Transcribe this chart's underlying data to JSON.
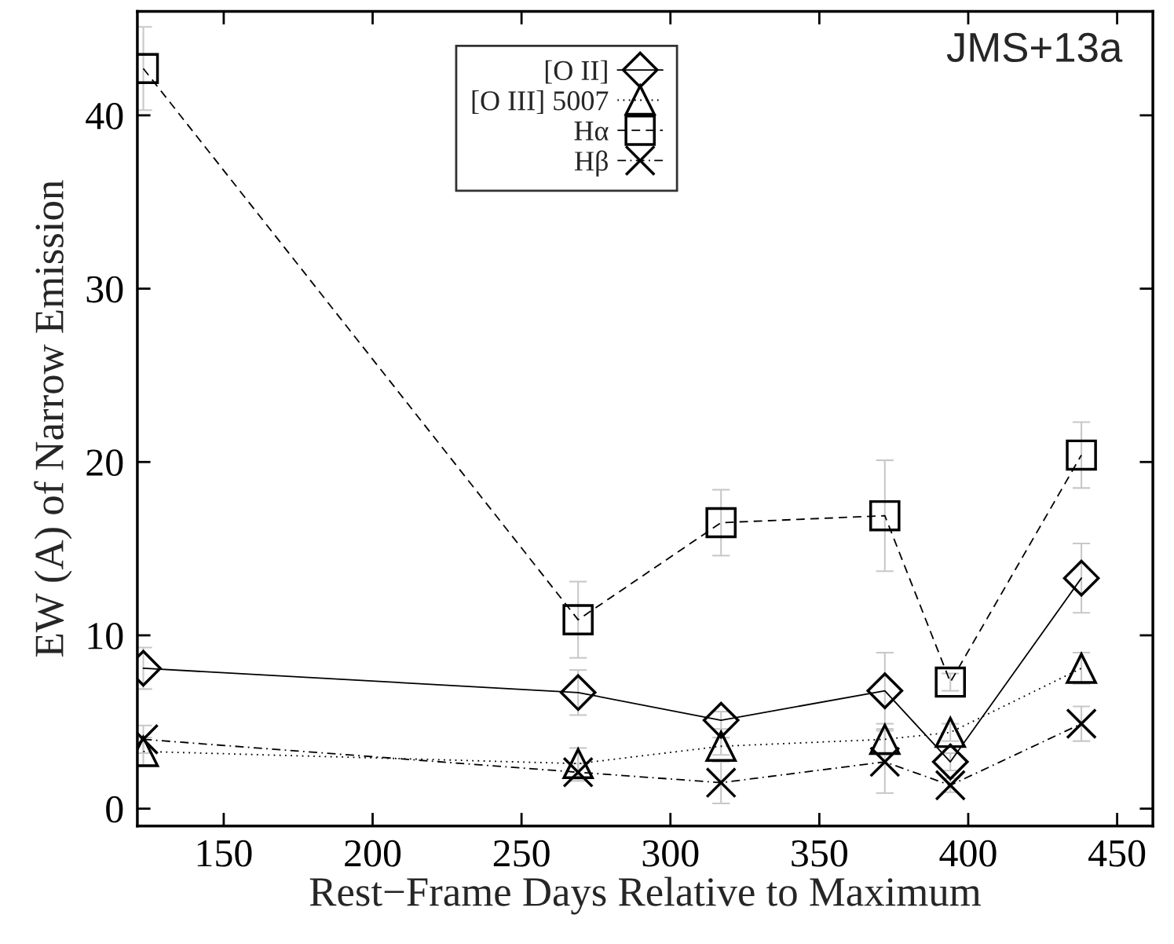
{
  "chart_data": {
    "type": "line",
    "xlabel": "Rest−Frame Days Relative to Maximum",
    "ylabel": "EW (A) of Narrow Emission",
    "x": [
      123,
      269,
      317,
      372,
      394,
      438
    ],
    "series": [
      {
        "name": "[O II]",
        "color": "#000000",
        "marker": "diamond",
        "line_style": "solid",
        "values": [
          8.1,
          6.7,
          5.1,
          6.8,
          2.7,
          13.3
        ],
        "errors": [
          1.2,
          1.3,
          0.5,
          2.2,
          0.5,
          2.0
        ]
      },
      {
        "name": "[O III] 5007",
        "color": "#000000",
        "marker": "triangle",
        "line_style": "dotted",
        "values": [
          3.3,
          2.6,
          3.6,
          4.0,
          4.4,
          8.1
        ],
        "errors": [
          0.8,
          0.9,
          0.5,
          0.9,
          0.5,
          0.9
        ]
      },
      {
        "name": "Hα",
        "color": "#000000",
        "marker": "square",
        "line_style": "dashed",
        "values": [
          42.7,
          10.9,
          16.5,
          16.9,
          7.3,
          20.4
        ],
        "errors": [
          2.4,
          2.2,
          1.9,
          3.2,
          0.5,
          1.9
        ]
      },
      {
        "name": "Hβ",
        "color": "#000000",
        "marker": "cross",
        "line_style": "dashdot",
        "values": [
          4.0,
          2.1,
          1.5,
          2.7,
          1.35,
          4.9
        ],
        "errors": [
          0.8,
          0.5,
          1.2,
          1.8,
          0.4,
          1.0
        ]
      }
    ],
    "xlim": [
      121,
      462
    ],
    "ylim": [
      -1,
      46
    ],
    "xticks": [
      150,
      200,
      250,
      300,
      350,
      400,
      450
    ],
    "yticks": [
      0,
      10,
      20,
      30,
      40
    ],
    "grid": false,
    "legend": "top",
    "annotations": [
      {
        "text": "JMS+13a"
      }
    ]
  }
}
